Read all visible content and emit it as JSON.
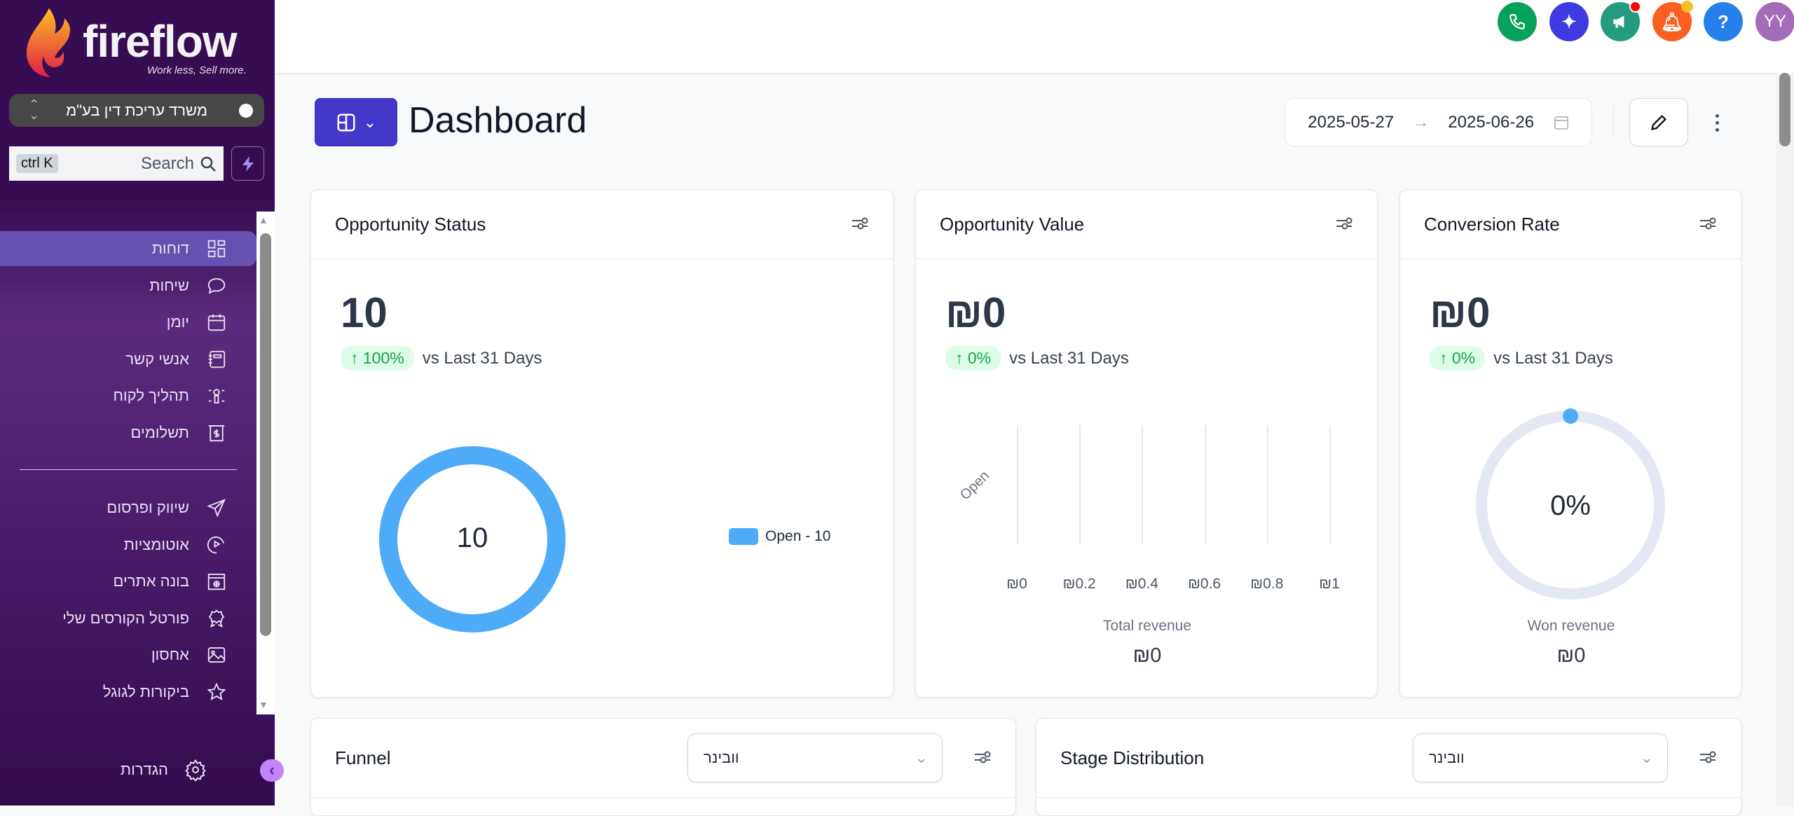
{
  "brand": {
    "name": "fireflow",
    "tagline": "Work less, Sell more."
  },
  "org": {
    "name": "משרד עריכת דין בע\"מ"
  },
  "search": {
    "label": "Search",
    "shortcut": "ctrl K"
  },
  "sidebar": {
    "items": [
      {
        "label": "דוחות",
        "icon": "grid-icon",
        "active": true
      },
      {
        "label": "שיחות",
        "icon": "chat-icon"
      },
      {
        "label": "יומן",
        "icon": "calendar-icon"
      },
      {
        "label": "אנשי קשר",
        "icon": "contacts-icon"
      },
      {
        "label": "תהליך לקוח",
        "icon": "pipeline-icon"
      },
      {
        "label": "תשלומים",
        "icon": "payments-icon"
      }
    ],
    "items2": [
      {
        "label": "שיווק ופרסום",
        "icon": "send-icon"
      },
      {
        "label": "אוטומציות",
        "icon": "automation-icon"
      },
      {
        "label": "בונה אתרים",
        "icon": "website-icon"
      },
      {
        "label": "פורטל הקורסים שלי",
        "icon": "award-icon"
      },
      {
        "label": "אחסון",
        "icon": "image-icon"
      },
      {
        "label": "ביקורות לגוגל",
        "icon": "star-icon"
      }
    ],
    "settings": "הגדרות"
  },
  "topbar": {
    "avatar": "YY",
    "colors": {
      "phone": "#06a25c",
      "ai": "#3f3be0",
      "announce": "#239c7f",
      "bell": "#fb5f21",
      "help": "#2680eb",
      "avatar": "#a46bb8"
    }
  },
  "header": {
    "title": "Dashboard",
    "date_start": "2025-05-27",
    "date_end": "2025-06-26"
  },
  "cards": {
    "status": {
      "title": "Opportunity Status",
      "value": "10",
      "change": "100%",
      "compare": "vs Last 31 Days",
      "donut_center": "10",
      "legend": "Open - 10"
    },
    "value": {
      "title": "Opportunity Value",
      "value": "₪0",
      "change": "0%",
      "compare": "vs Last 31 Days",
      "footer_label": "Total revenue",
      "footer_value": "₪0"
    },
    "conversion": {
      "title": "Conversion Rate",
      "value": "₪0",
      "change": "0%",
      "compare": "vs Last 31 Days",
      "ring_center": "0%",
      "footer_label": "Won revenue",
      "footer_value": "₪0"
    },
    "funnel": {
      "title": "Funnel",
      "select": "וובינר"
    },
    "stage": {
      "title": "Stage Distribution",
      "select": "וובינר"
    }
  },
  "chart_data": [
    {
      "type": "pie",
      "title": "Opportunity Status",
      "categories": [
        "Open"
      ],
      "values": [
        10
      ],
      "colors": [
        "#4dabf7"
      ]
    },
    {
      "type": "bar",
      "title": "Opportunity Value",
      "categories": [
        "Open"
      ],
      "values": [
        0
      ],
      "xlabel": "Total revenue",
      "x_ticks": [
        "₪0",
        "₪0.2",
        "₪0.4",
        "₪0.6",
        "₪0.8",
        "₪1"
      ],
      "xlim": [
        0,
        1
      ]
    },
    {
      "type": "pie",
      "title": "Conversion Rate",
      "values": [
        0
      ],
      "center_label": "0%",
      "progress": 0
    }
  ]
}
